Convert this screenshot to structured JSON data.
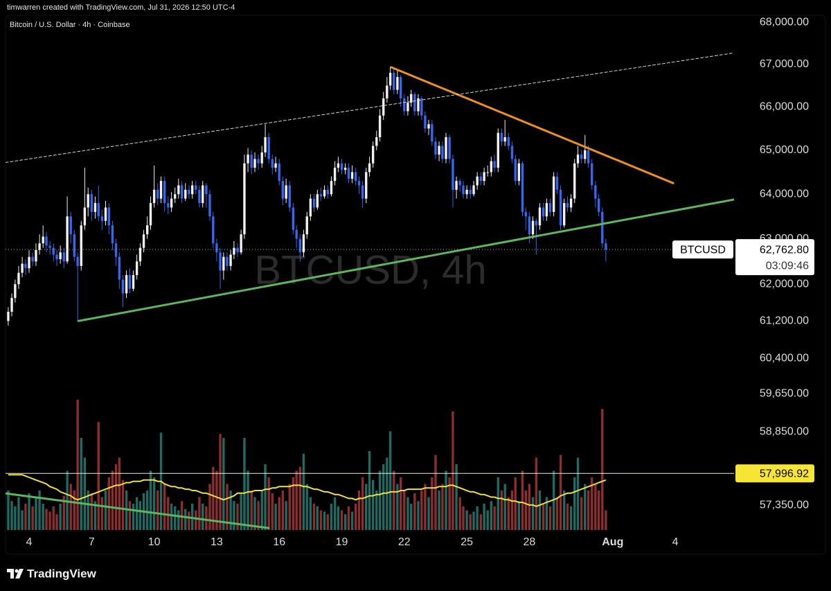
{
  "chart_data": {
    "type": "candlestick",
    "credit": "timwarren created with TradingView.com, Jul 31, 2026 12:50 UTC-4",
    "title": "Bitcoin / U.S. Dollar · 4h · Coinbase",
    "watermark": "BTCUSD, 4h",
    "brand": "TradingView",
    "log_scale": true,
    "grid": false,
    "up_color": "#f2f2f2",
    "down_color": "#3468f0",
    "volume_up_color": "#1f6a63",
    "volume_down_color": "#8c2e2e",
    "volume_ma_color": "#f4e03c",
    "xlim": [
      2.87,
      37.82
    ],
    "xticks": [
      4,
      7,
      10,
      13,
      16,
      19,
      22,
      25,
      28,
      {
        "value": 32,
        "label": "Aug"
      },
      {
        "value": 35,
        "label": "4"
      }
    ],
    "ylim": [
      56850,
      68170
    ],
    "yticks": [
      {
        "value": 68000,
        "label": "68,000.00"
      },
      {
        "value": 67000,
        "label": "67,000.00"
      },
      {
        "value": 66000,
        "label": "66,000.00"
      },
      {
        "value": 65000,
        "label": "65,000.00"
      },
      {
        "value": 64000,
        "label": "64,000.00"
      },
      {
        "value": 63000,
        "label": "63,000.00"
      },
      {
        "value": 62000,
        "label": "62,000.00"
      },
      {
        "value": 61200,
        "label": "61,200.00"
      },
      {
        "value": 60400,
        "label": "60,400.00"
      },
      {
        "value": 59650,
        "label": "59,650.00"
      },
      {
        "value": 58850,
        "label": "58,850.00"
      },
      {
        "value": 57350,
        "label": "57,350.00"
      }
    ],
    "vlim": [
      0,
      100
    ],
    "last_price": {
      "symbol": "BTCUSD",
      "value": 62762.8,
      "label": "62,762.80",
      "countdown": "03:09:46",
      "color": "#ffffff"
    },
    "ma_label": {
      "value": 57996.92,
      "label": "57,996.92",
      "color": "#f7e535"
    },
    "trendlines": [
      {
        "color": "#f0901e",
        "dashed": false,
        "x": [
          21.38,
          34.9
        ],
        "y": [
          66930,
          64250
        ]
      },
      {
        "color": "#5cb85c",
        "dashed": false,
        "x": [
          6.36,
          37.82
        ],
        "y": [
          61200,
          63880
        ]
      },
      {
        "color": "#d8d8d8",
        "dashed": true,
        "x": [
          2.87,
          37.82
        ],
        "y": [
          64720,
          67270
        ]
      },
      {
        "color": "#5cb85c",
        "dashed": false,
        "x": [
          2.87,
          15.49
        ],
        "y": [
          57590,
          56890
        ]
      }
    ],
    "x": [
      3,
      3.17,
      3.33,
      3.5,
      3.67,
      3.83,
      4,
      4.17,
      4.33,
      4.5,
      4.67,
      4.83,
      5,
      5.17,
      5.33,
      5.5,
      5.67,
      5.83,
      6,
      6.17,
      6.33,
      6.5,
      6.67,
      6.83,
      7,
      7.17,
      7.33,
      7.5,
      7.67,
      7.83,
      8,
      8.17,
      8.33,
      8.5,
      8.67,
      8.83,
      9,
      9.17,
      9.33,
      9.5,
      9.67,
      9.83,
      10,
      10.17,
      10.33,
      10.5,
      10.67,
      10.83,
      11,
      11.17,
      11.33,
      11.5,
      11.67,
      11.83,
      12,
      12.17,
      12.33,
      12.5,
      12.67,
      12.83,
      13,
      13.17,
      13.33,
      13.5,
      13.67,
      13.83,
      14,
      14.17,
      14.33,
      14.5,
      14.67,
      14.83,
      15,
      15.17,
      15.33,
      15.5,
      15.67,
      15.83,
      16,
      16.17,
      16.33,
      16.5,
      16.67,
      16.83,
      17,
      17.17,
      17.33,
      17.5,
      17.67,
      17.83,
      18,
      18.17,
      18.33,
      18.5,
      18.67,
      18.83,
      19,
      19.17,
      19.33,
      19.5,
      19.67,
      19.83,
      20,
      20.17,
      20.33,
      20.5,
      20.67,
      20.83,
      21,
      21.17,
      21.33,
      21.5,
      21.67,
      21.83,
      22,
      22.17,
      22.33,
      22.5,
      22.67,
      22.83,
      23,
      23.17,
      23.33,
      23.5,
      23.67,
      23.83,
      24,
      24.17,
      24.33,
      24.5,
      24.67,
      24.83,
      25,
      25.17,
      25.33,
      25.5,
      25.67,
      25.83,
      26,
      26.17,
      26.33,
      26.5,
      26.67,
      26.83,
      27,
      27.17,
      27.33,
      27.5,
      27.67,
      27.83,
      28,
      28.17,
      28.33,
      28.5,
      28.67,
      28.83,
      29,
      29.17,
      29.33,
      29.5,
      29.67,
      29.83,
      30,
      30.17,
      30.33,
      30.5,
      30.67,
      30.83,
      31,
      31.17,
      31.33,
      31.5,
      31.67
    ],
    "open": [
      61200,
      61400,
      61700,
      62000,
      62250,
      62450,
      62350,
      62600,
      62500,
      62750,
      62900,
      63050,
      62850,
      62800,
      62650,
      62550,
      62700,
      62500,
      63500,
      63100,
      62600,
      62400,
      63300,
      63700,
      64000,
      63600,
      63800,
      63500,
      63400,
      63700,
      63300,
      62900,
      62600,
      62100,
      61800,
      62200,
      61900,
      62200,
      62500,
      62800,
      63100,
      63300,
      63800,
      64100,
      63900,
      64300,
      63800,
      63700,
      63900,
      64000,
      64200,
      63900,
      64100,
      64000,
      64200,
      64100,
      63800,
      64200,
      64000,
      63500,
      62900,
      62700,
      62300,
      62600,
      62400,
      62650,
      62800,
      62700,
      63100,
      64700,
      64900,
      64600,
      64800,
      64700,
      64950,
      65300,
      64800,
      64600,
      64700,
      64300,
      63900,
      64200,
      63700,
      63200,
      63000,
      62700,
      63100,
      63500,
      63900,
      63700,
      64000,
      63950,
      64100,
      64000,
      64300,
      64600,
      64700,
      64550,
      64600,
      64350,
      64500,
      64300,
      64200,
      63900,
      64500,
      64700,
      65100,
      65300,
      65800,
      66200,
      66500,
      66800,
      66400,
      66700,
      66200,
      65900,
      66100,
      66300,
      65900,
      66200,
      65800,
      65500,
      65600,
      65200,
      64900,
      65100,
      64800,
      65300,
      64800,
      64100,
      64300,
      64200,
      64000,
      64100,
      64000,
      64200,
      64400,
      64300,
      64500,
      64500,
      64750,
      64600,
      65400,
      65200,
      65300,
      65100,
      64800,
      64300,
      64700,
      63600,
      63500,
      63100,
      63400,
      63300,
      63700,
      63500,
      63800,
      63600,
      64400,
      64100,
      63300,
      63800,
      63700,
      63900,
      64700,
      64900,
      64800,
      65000,
      64700,
      64200,
      63900,
      63600,
      62900
    ],
    "high": [
      61500,
      61800,
      62100,
      62400,
      62600,
      62550,
      62750,
      62700,
      62900,
      63100,
      63300,
      63150,
      62950,
      62900,
      62750,
      62850,
      62800,
      63950,
      63600,
      63200,
      62700,
      63400,
      64600,
      64150,
      64100,
      63950,
      64200,
      63650,
      63850,
      63800,
      63400,
      63000,
      62700,
      62200,
      62300,
      62350,
      62300,
      62650,
      62900,
      63200,
      63500,
      63950,
      64650,
      64250,
      64400,
      64400,
      63950,
      64050,
      64150,
      64350,
      64300,
      64250,
      64200,
      64300,
      64300,
      64200,
      64300,
      64250,
      64100,
      63600,
      63000,
      62800,
      62700,
      62700,
      62750,
      62950,
      62900,
      63200,
      64900,
      65050,
      65000,
      64950,
      64900,
      65100,
      65600,
      65400,
      64900,
      64850,
      64800,
      64400,
      64350,
      64300,
      63800,
      63300,
      63100,
      63200,
      63600,
      64000,
      64000,
      64100,
      64150,
      64200,
      64200,
      64400,
      64750,
      64850,
      64800,
      64700,
      64700,
      64650,
      64600,
      64400,
      64300,
      64600,
      64850,
      65200,
      65450,
      65950,
      66350,
      66700,
      66950,
      66900,
      66850,
      66750,
      66300,
      66250,
      66400,
      66350,
      66300,
      66250,
      65900,
      65700,
      65700,
      65300,
      65200,
      65200,
      65400,
      65350,
      64900,
      64400,
      64350,
      64300,
      64200,
      64200,
      64300,
      64500,
      64500,
      64600,
      64650,
      64850,
      64900,
      65500,
      65500,
      65700,
      65400,
      65200,
      64900,
      64800,
      64750,
      63700,
      63600,
      63500,
      63450,
      63800,
      63800,
      63900,
      63900,
      64500,
      64500,
      64200,
      63900,
      63950,
      64000,
      64800,
      65100,
      65000,
      65350,
      65100,
      64800,
      64300,
      64000,
      63700,
      63000
    ],
    "low": [
      61100,
      61300,
      61600,
      61900,
      62150,
      62200,
      62250,
      62400,
      62400,
      62650,
      62800,
      62700,
      62650,
      62500,
      62400,
      62450,
      62350,
      62450,
      62900,
      62500,
      61200,
      62300,
      63200,
      63500,
      63400,
      63450,
      63400,
      63200,
      63300,
      63100,
      62750,
      62400,
      61900,
      61500,
      61700,
      61800,
      61850,
      62100,
      62400,
      62700,
      63000,
      63200,
      63700,
      63750,
      63800,
      63600,
      63550,
      63600,
      63800,
      63900,
      63800,
      63850,
      63900,
      63900,
      64000,
      63700,
      63700,
      63700,
      63400,
      62800,
      62500,
      61900,
      62100,
      62300,
      62300,
      62550,
      62600,
      62650,
      63000,
      64500,
      64450,
      64500,
      64550,
      64600,
      64850,
      64700,
      64450,
      64500,
      64200,
      63750,
      63800,
      63600,
      63100,
      62800,
      62500,
      62600,
      63000,
      63400,
      63600,
      63650,
      63850,
      63900,
      63900,
      63950,
      64200,
      64500,
      64450,
      64450,
      64250,
      64250,
      64200,
      64000,
      63700,
      63800,
      64400,
      64600,
      65000,
      65200,
      65700,
      66100,
      66400,
      66300,
      66300,
      66000,
      65800,
      65800,
      66000,
      65800,
      65800,
      65700,
      65400,
      65350,
      65100,
      64800,
      64750,
      64700,
      64700,
      64700,
      63700,
      63900,
      64050,
      63900,
      63900,
      63900,
      63950,
      64100,
      64200,
      64200,
      64400,
      64400,
      64500,
      64500,
      65100,
      65100,
      65000,
      64700,
      64200,
      64200,
      63500,
      63200,
      62900,
      63000,
      62650,
      63200,
      63400,
      63400,
      63500,
      63500,
      64000,
      63200,
      63250,
      63600,
      63600,
      63800,
      64600,
      64700,
      64700,
      64600,
      64100,
      63700,
      63500,
      62800,
      62500
    ],
    "close": [
      61400,
      61700,
      62000,
      62250,
      62450,
      62350,
      62600,
      62500,
      62750,
      62900,
      63050,
      62850,
      62800,
      62650,
      62550,
      62700,
      62500,
      63500,
      63100,
      62600,
      62400,
      63300,
      63700,
      64000,
      63600,
      63800,
      63500,
      63400,
      63700,
      63300,
      62900,
      62600,
      62100,
      61800,
      62200,
      61900,
      62200,
      62500,
      62800,
      63100,
      63300,
      63800,
      64100,
      63900,
      64300,
      63800,
      63700,
      63900,
      64000,
      64200,
      63900,
      64100,
      64000,
      64200,
      64100,
      63800,
      64200,
      64000,
      63500,
      62900,
      62700,
      62300,
      62600,
      62400,
      62650,
      62800,
      62700,
      63100,
      64700,
      64900,
      64600,
      64800,
      64700,
      64950,
      65300,
      64800,
      64600,
      64700,
      64300,
      63900,
      64200,
      63700,
      63200,
      63000,
      62700,
      63100,
      63500,
      63900,
      63700,
      64000,
      63950,
      64100,
      64000,
      64300,
      64600,
      64700,
      64550,
      64600,
      64350,
      64500,
      64300,
      64200,
      63900,
      64500,
      64700,
      65100,
      65300,
      65800,
      66200,
      66500,
      66800,
      66400,
      66700,
      66200,
      65900,
      66100,
      66300,
      65900,
      66200,
      65800,
      65500,
      65600,
      65200,
      64900,
      65100,
      64800,
      65300,
      64800,
      64100,
      64300,
      64200,
      64000,
      64100,
      64000,
      64200,
      64400,
      64300,
      64500,
      64500,
      64750,
      64600,
      65400,
      65200,
      65300,
      65100,
      64800,
      64300,
      64700,
      63600,
      63500,
      63100,
      63400,
      63300,
      63700,
      63500,
      63800,
      63600,
      64400,
      64100,
      63300,
      63800,
      63700,
      63900,
      64700,
      64900,
      64800,
      65000,
      64700,
      64200,
      63900,
      63600,
      62900,
      62762.8
    ],
    "volume": [
      30,
      22,
      18,
      25,
      15,
      20,
      28,
      18,
      24,
      30,
      20,
      16,
      14,
      18,
      12,
      20,
      26,
      45,
      35,
      30,
      99,
      70,
      55,
      30,
      28,
      22,
      82,
      25,
      30,
      40,
      45,
      50,
      55,
      38,
      30,
      22,
      20,
      25,
      22,
      28,
      30,
      45,
      40,
      30,
      74,
      35,
      25,
      20,
      18,
      15,
      22,
      16,
      14,
      20,
      15,
      25,
      20,
      18,
      35,
      48,
      45,
      73,
      70,
      35,
      30,
      22,
      20,
      28,
      70,
      45,
      30,
      25,
      22,
      30,
      50,
      40,
      28,
      20,
      25,
      30,
      22,
      35,
      40,
      45,
      48,
      58,
      35,
      25,
      20,
      18,
      15,
      14,
      12,
      20,
      25,
      18,
      15,
      12,
      18,
      14,
      20,
      30,
      40,
      35,
      60,
      38,
      30,
      45,
      50,
      55,
      75,
      45,
      35,
      40,
      30,
      25,
      20,
      28,
      22,
      30,
      35,
      25,
      40,
      57,
      30,
      35,
      45,
      40,
      90,
      50,
      25,
      18,
      15,
      12,
      14,
      18,
      12,
      20,
      15,
      22,
      18,
      40,
      30,
      35,
      25,
      30,
      40,
      22,
      45,
      30,
      35,
      25,
      55,
      30,
      20,
      25,
      18,
      45,
      25,
      57,
      30,
      20,
      18,
      40,
      55,
      25,
      35,
      30,
      40,
      35,
      30,
      92,
      15
    ],
    "volume_ma": [
      42,
      42,
      42,
      42,
      42,
      41,
      40,
      39,
      38,
      37,
      36,
      35,
      33,
      32,
      31,
      29,
      28,
      27,
      26,
      24,
      23,
      24,
      25,
      26,
      27,
      28,
      29,
      30,
      31,
      32,
      33,
      34,
      34,
      35,
      36,
      36,
      37,
      37,
      37,
      38,
      38,
      38,
      38,
      37,
      37,
      35,
      34,
      33,
      33,
      32,
      32,
      31,
      31,
      30,
      30,
      29,
      28,
      28,
      27,
      26,
      25,
      24,
      23,
      24,
      25,
      26,
      28,
      28,
      28,
      29,
      29,
      30,
      30,
      30,
      31,
      31,
      32,
      32,
      33,
      33,
      33,
      33,
      34,
      34,
      34,
      33,
      33,
      32,
      31,
      31,
      30,
      29,
      29,
      28,
      27,
      27,
      26,
      25,
      24,
      24,
      23,
      24,
      24,
      25,
      26,
      26,
      27,
      27,
      28,
      28,
      29,
      29,
      29,
      30,
      30,
      31,
      31,
      31,
      31,
      31,
      32,
      32,
      32,
      32,
      33,
      33,
      33,
      34,
      34,
      33,
      32,
      31,
      30,
      29,
      29,
      28,
      27,
      27,
      26,
      25,
      25,
      24,
      24,
      23,
      23,
      22,
      22,
      21,
      21,
      20,
      19,
      19,
      18,
      19,
      20,
      21,
      22,
      23,
      24,
      26,
      27,
      28,
      28,
      29,
      30,
      31,
      32,
      33,
      34,
      35,
      36,
      37,
      38
    ]
  }
}
